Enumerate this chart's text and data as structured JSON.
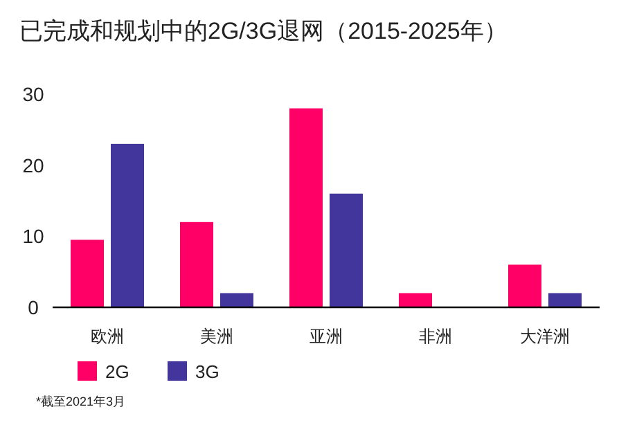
{
  "chart_data": {
    "type": "bar",
    "title": "已完成和规划中的2G/3G退网（2015-2025年）",
    "categories": [
      "欧洲",
      "美洲",
      "亚洲",
      "非洲",
      "大洋洲"
    ],
    "series": [
      {
        "name": "2G",
        "color": "#ff0066",
        "values": [
          9.5,
          12,
          28,
          2,
          6
        ]
      },
      {
        "name": "3G",
        "color": "#42369c",
        "values": [
          23,
          2,
          16,
          0,
          2
        ]
      }
    ],
    "ylim": [
      0,
      30
    ],
    "yticks": [
      0,
      10,
      20,
      30
    ],
    "legend": "bottom left",
    "grid": false,
    "annotations": [
      "*截至2021年3月"
    ]
  }
}
